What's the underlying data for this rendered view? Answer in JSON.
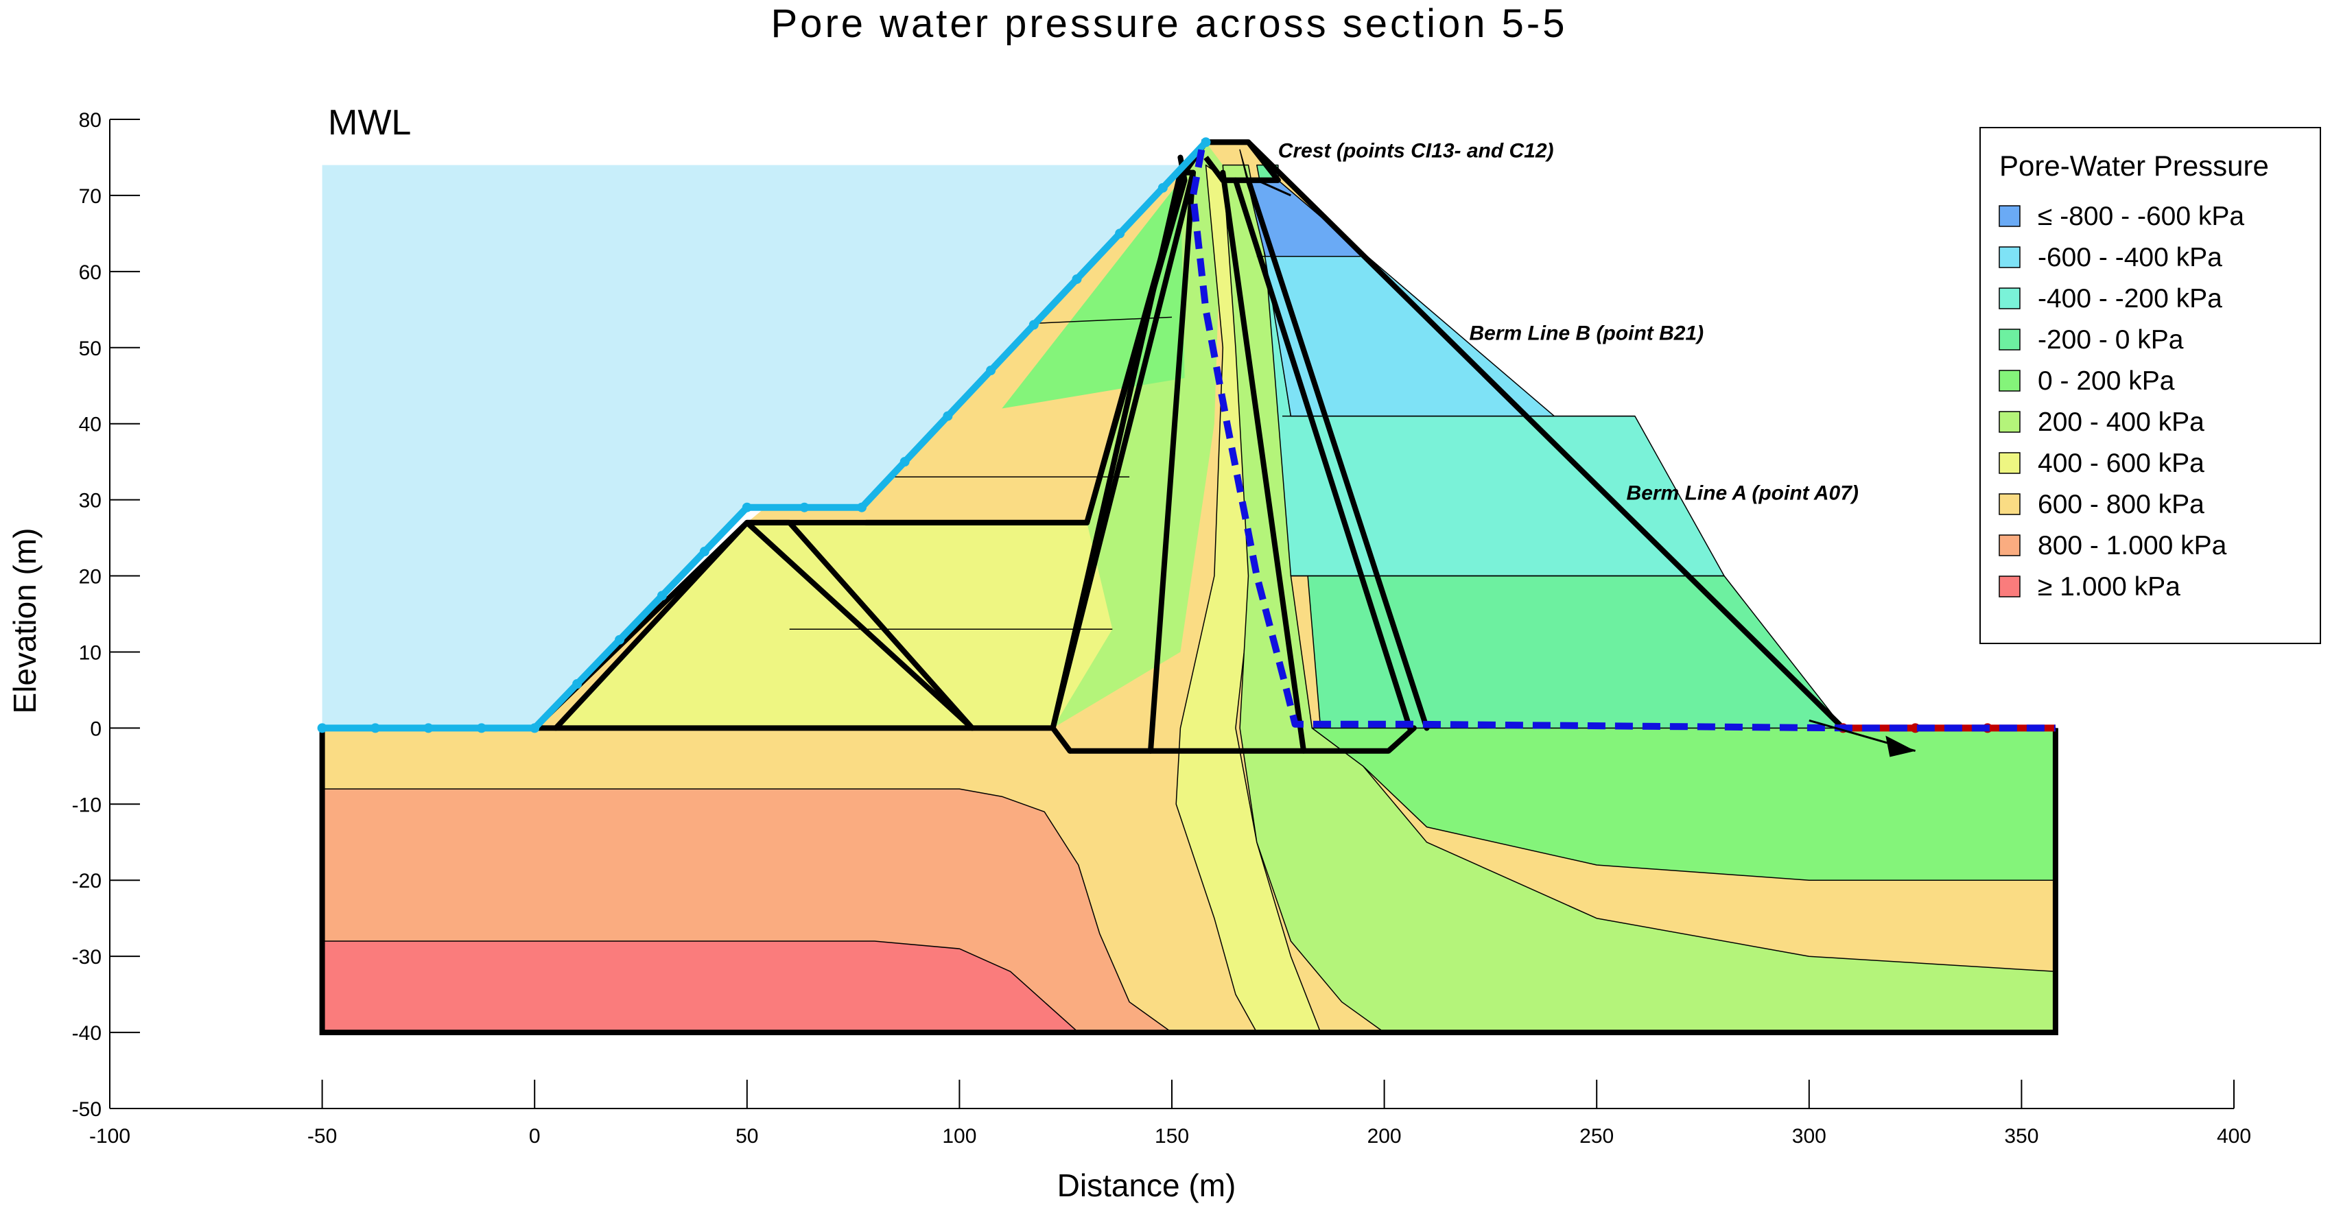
{
  "chart_data": {
    "type": "contour",
    "title": "Pore water pressure across section 5-5",
    "xlabel": "Distance (m)",
    "ylabel": "Elevation (m)",
    "xlim": [
      -100,
      400
    ],
    "ylim": [
      -50,
      80
    ],
    "xticks": [
      -100,
      -50,
      0,
      50,
      100,
      150,
      200,
      250,
      300,
      350,
      400
    ],
    "yticks": [
      80,
      70,
      60,
      50,
      40,
      30,
      20,
      10,
      0,
      -10,
      -20,
      -30,
      -40,
      -50
    ],
    "reservoir_label": "MWL",
    "annotations": [
      {
        "text": "Crest (points CI13- and C12)",
        "x": 175,
        "y": 75
      },
      {
        "text": "Berm Line B (point B21)",
        "x": 220,
        "y": 51
      },
      {
        "text": "Berm Line A (point A07)",
        "x": 257,
        "y": 30
      }
    ],
    "legend": {
      "title": "Pore-Water Pressure",
      "position": "top-right",
      "entries": [
        {
          "label": "≤ -800 - -600 kPa",
          "color": "#6aaaf5"
        },
        {
          "label": "-600 - -400 kPa",
          "color": "#7ee2f6"
        },
        {
          "label": "-400 - -200 kPa",
          "color": "#7af2d8"
        },
        {
          "label": "-200 - 0 kPa",
          "color": "#6df0a0"
        },
        {
          "label": "0 - 200 kPa",
          "color": "#84f47a"
        },
        {
          "label": "200 - 400 kPa",
          "color": "#b4f47a"
        },
        {
          "label": "400 - 600 kPa",
          "color": "#eef682"
        },
        {
          "label": "600 - 800 kPa",
          "color": "#fadc84"
        },
        {
          "label": "800 - 1.000 kPa",
          "color": "#faac80"
        },
        {
          "label": "≥ 1.000 kPa",
          "color": "#fa7c7c"
        }
      ]
    },
    "reservoir_color": "#c8eefa",
    "upstream_boundary_color": "#18b4e8",
    "phreatic_line_color": "#1010e0",
    "seepage_boundary_color": "#c00000",
    "reservoir_level": 74,
    "upstream_face": [
      [
        -50,
        0
      ],
      [
        0,
        0
      ],
      [
        50,
        29
      ],
      [
        77,
        29
      ],
      [
        158,
        77
      ]
    ],
    "phreatic_line": [
      [
        157,
        76
      ],
      [
        155,
        70
      ],
      [
        158,
        55
      ],
      [
        163,
        40
      ],
      [
        170,
        20
      ],
      [
        177,
        5
      ],
      [
        179,
        0.5
      ],
      [
        207,
        0.5
      ],
      [
        310,
        0
      ],
      [
        358,
        0
      ]
    ],
    "seepage_face": [
      [
        308,
        0
      ],
      [
        358,
        0
      ]
    ],
    "domain_outline": [
      [
        -50,
        0
      ],
      [
        -50,
        -40
      ],
      [
        358,
        -40
      ],
      [
        358,
        0
      ]
    ],
    "embankment_zones": [
      [
        [
          0,
          0
        ],
        [
          50,
          27
        ],
        [
          130,
          27
        ],
        [
          153,
          73
        ],
        [
          158,
          77
        ],
        [
          168,
          77
        ],
        [
          308,
          0
        ]
      ],
      [
        [
          5,
          0
        ],
        [
          50,
          27
        ],
        [
          103,
          0
        ]
      ],
      [
        [
          50,
          27
        ],
        [
          60,
          27
        ],
        [
          103,
          0
        ]
      ],
      [
        [
          78,
          27
        ],
        [
          130,
          27
        ],
        [
          153,
          72
        ],
        [
          152,
          75
        ]
      ],
      [
        [
          122,
          0
        ],
        [
          152,
          73
        ],
        [
          155,
          73
        ]
      ],
      [
        [
          126,
          -3
        ],
        [
          122,
          0
        ],
        [
          155,
          73
        ],
        [
          145,
          -3
        ]
      ],
      [
        [
          162,
          73
        ],
        [
          181,
          -3
        ]
      ],
      [
        [
          165,
          72
        ],
        [
          206,
          0
        ]
      ],
      [
        [
          168,
          72
        ],
        [
          210,
          0
        ]
      ],
      [
        [
          162,
          72
        ],
        [
          175,
          72
        ]
      ],
      [
        [
          126,
          -3
        ],
        [
          201,
          -3
        ],
        [
          207,
          0
        ]
      ],
      [
        [
          -50,
          0
        ],
        [
          122,
          0
        ]
      ]
    ],
    "contour_bands": [
      {
        "color": "#faac80",
        "points": [
          [
            -50,
            -8
          ],
          [
            100,
            -8
          ],
          [
            110,
            -9
          ],
          [
            120,
            -11
          ],
          [
            128,
            -18
          ],
          [
            133,
            -27
          ],
          [
            140,
            -36
          ],
          [
            150,
            -40
          ],
          [
            -50,
            -40
          ]
        ]
      },
      {
        "color": "#fa7c7c",
        "points": [
          [
            -50,
            -28
          ],
          [
            80,
            -28
          ],
          [
            100,
            -29
          ],
          [
            112,
            -32
          ],
          [
            120,
            -36
          ],
          [
            128,
            -40
          ],
          [
            -50,
            -40
          ]
        ]
      },
      {
        "color": "#eef682",
        "points": [
          [
            158,
            74
          ],
          [
            162,
            50
          ],
          [
            160,
            20
          ],
          [
            152,
            0
          ],
          [
            151,
            -10
          ],
          [
            160,
            -25
          ],
          [
            165,
            -35
          ],
          [
            170,
            -40
          ],
          [
            185,
            -40
          ],
          [
            178,
            -30
          ],
          [
            170,
            -15
          ],
          [
            165,
            0
          ],
          [
            168,
            15
          ],
          [
            170,
            40
          ],
          [
            168,
            70
          ]
        ]
      },
      {
        "color": "#b4f47a",
        "points": [
          [
            162,
            74
          ],
          [
            165,
            50
          ],
          [
            168,
            20
          ],
          [
            166,
            0
          ],
          [
            170,
            -15
          ],
          [
            178,
            -28
          ],
          [
            190,
            -36
          ],
          [
            200,
            -40
          ],
          [
            358,
            -40
          ],
          [
            358,
            -32
          ],
          [
            300,
            -30
          ],
          [
            250,
            -25
          ],
          [
            210,
            -15
          ],
          [
            195,
            -5
          ],
          [
            183,
            0
          ],
          [
            178,
            20
          ],
          [
            176,
            50
          ],
          [
            168,
            74
          ]
        ]
      },
      {
        "color": "#84f47a",
        "points": [
          [
            183,
            0
          ],
          [
            195,
            -5
          ],
          [
            210,
            -13
          ],
          [
            250,
            -18
          ],
          [
            300,
            -20
          ],
          [
            358,
            -20
          ],
          [
            358,
            0
          ]
        ]
      },
      {
        "color": "#6df0a0",
        "points": [
          [
            170,
            74
          ],
          [
            178,
            50
          ],
          [
            182,
            20
          ],
          [
            185,
            0
          ],
          [
            308,
            0
          ],
          [
            280,
            20
          ],
          [
            178,
            20
          ],
          [
            176,
            50
          ],
          [
            175,
            74
          ]
        ]
      },
      {
        "color": "#7af2d8",
        "points": [
          [
            172,
            62
          ],
          [
            178,
            41
          ],
          [
            259,
            41
          ],
          [
            280,
            20
          ],
          [
            178,
            20
          ]
        ]
      },
      {
        "color": "#7ee2f6",
        "points": [
          [
            169,
            72
          ],
          [
            172,
            62
          ],
          [
            196,
            62
          ],
          [
            240,
            41
          ],
          [
            178,
            41
          ]
        ]
      },
      {
        "color": "#6aaaf5",
        "points": [
          [
            166,
            76
          ],
          [
            168,
            72
          ],
          [
            175,
            72
          ],
          [
            196,
            62
          ],
          [
            172,
            62
          ]
        ]
      }
    ]
  }
}
